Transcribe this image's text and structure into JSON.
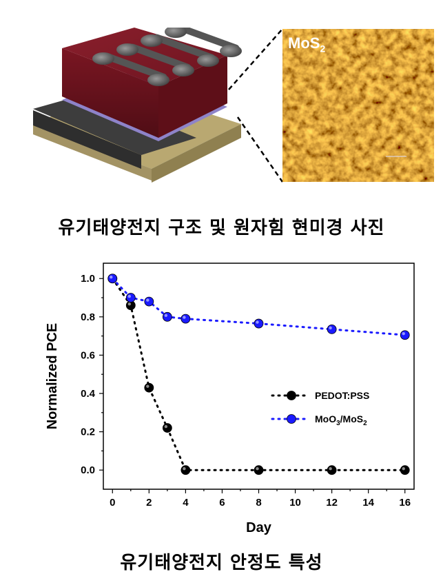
{
  "top_panel": {
    "afm_label": "MoS",
    "afm_label_sub": "2",
    "caption": "유기태양전지 구조 및 원자힘 현미경 사진"
  },
  "bottom_caption": "유기태양전지 안정도 특성",
  "chart_data": {
    "type": "scatter",
    "xlabel": "Day",
    "ylabel": "Normalized PCE",
    "xlim": [
      -0.5,
      16.5
    ],
    "ylim": [
      -0.1,
      1.08
    ],
    "xticks": [
      "0",
      "2",
      "4",
      "6",
      "8",
      "10",
      "12",
      "14",
      "16"
    ],
    "yticks": [
      "0.0",
      "0.2",
      "0.4",
      "0.6",
      "0.8",
      "1.0"
    ],
    "grid": false,
    "legend_position": "center-right",
    "series": [
      {
        "name": "PEDOT:PSS",
        "color": "#000000",
        "line_style": "dotted",
        "x": [
          0,
          1,
          2,
          3,
          4,
          8,
          12,
          16
        ],
        "y": [
          1.0,
          0.86,
          0.43,
          0.22,
          0.0,
          0.0,
          0.0,
          0.0
        ]
      },
      {
        "name": "MoO3/MoS2",
        "color": "#1a1aff",
        "line_style": "dotted",
        "x": [
          0,
          1,
          2,
          3,
          4,
          8,
          12,
          16
        ],
        "y": [
          1.0,
          0.9,
          0.88,
          0.8,
          0.79,
          0.765,
          0.735,
          0.705
        ]
      }
    ],
    "legend": [
      {
        "label_main": "PEDOT:PSS",
        "label_parts": []
      },
      {
        "label_main": "",
        "label_parts": [
          "MoO",
          "3",
          "/MoS",
          "2"
        ]
      }
    ]
  }
}
